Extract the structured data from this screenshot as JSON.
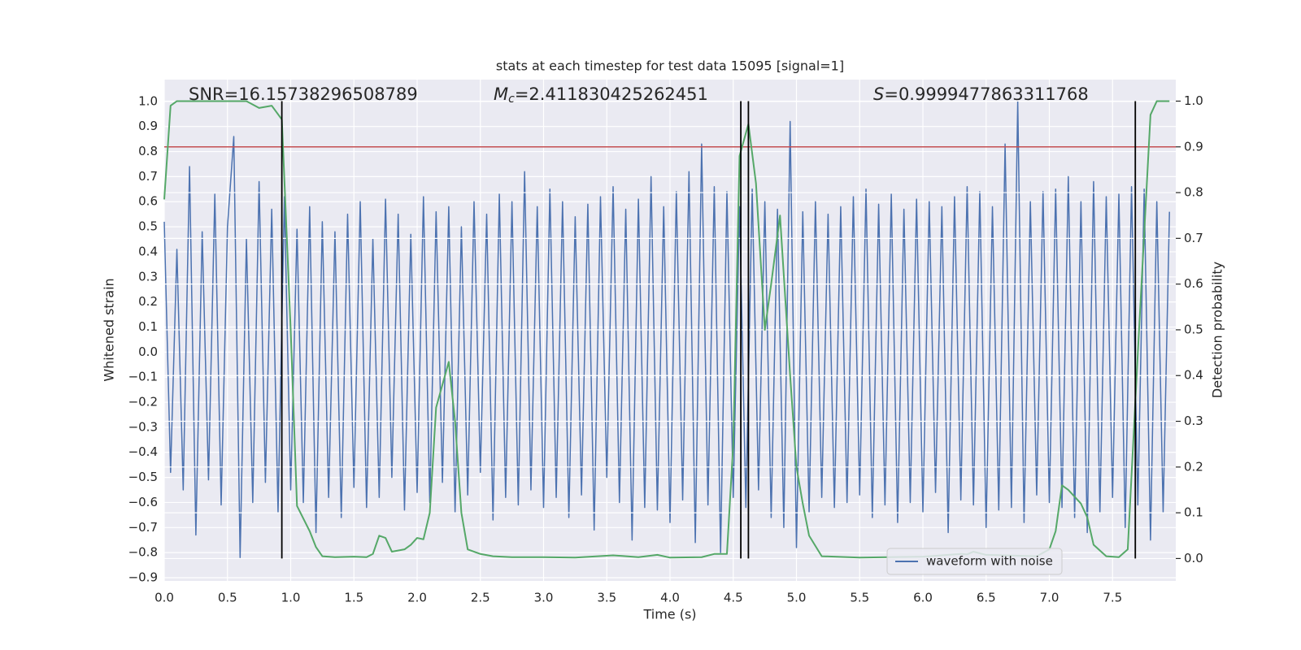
{
  "chart_data": {
    "type": "line",
    "title": "stats at each timestep for test data 15095 [signal=1]",
    "x_label": "Time (s)",
    "y_label": "Whitened strain",
    "y2_label": "Detection probability",
    "annotations": [
      {
        "text": "SNR=16.15738296508789"
      },
      {
        "symbol": "M",
        "subscript": "c",
        "text": "=2.411830425262451"
      },
      {
        "symbol": "S",
        "text": "=0.9999477863311768"
      }
    ],
    "xlim": [
      0,
      8.0
    ],
    "ylim": [
      -0.913,
      1.087
    ],
    "y2lim": [
      -0.049,
      1.047
    ],
    "xticks": [
      {
        "value": 0,
        "label": "0.0"
      },
      0.5,
      {
        "value": 1,
        "label": "1.0"
      },
      1.5,
      {
        "value": 2,
        "label": "2.0"
      },
      2.5,
      {
        "value": 3,
        "label": "3.0"
      },
      3.5,
      {
        "value": 4,
        "label": "4.0"
      },
      4.5,
      {
        "value": 5,
        "label": "5.0"
      },
      5.5,
      {
        "value": 6,
        "label": "6.0"
      },
      6.5,
      {
        "value": 7,
        "label": "7.0"
      },
      7.5
    ],
    "yticks": [
      {
        "value": -0.9,
        "label": "−0.9"
      },
      {
        "value": -0.8,
        "label": "−0.8"
      },
      {
        "value": -0.7,
        "label": "−0.7"
      },
      {
        "value": -0.6,
        "label": "−0.6"
      },
      {
        "value": -0.5,
        "label": "−0.5"
      },
      {
        "value": -0.4,
        "label": "−0.4"
      },
      {
        "value": -0.3,
        "label": "−0.3"
      },
      {
        "value": -0.2,
        "label": "−0.2"
      },
      {
        "value": -0.1,
        "label": "−0.1"
      },
      {
        "value": 0,
        "label": "0.0"
      },
      0.1,
      0.2,
      0.3,
      0.4,
      0.5,
      0.6,
      0.7,
      0.8,
      0.9,
      {
        "value": 1,
        "label": "1.0"
      }
    ],
    "y2ticks": [
      {
        "value": 0,
        "label": "0.0"
      },
      0.1,
      0.2,
      0.3,
      0.4,
      0.5,
      0.6,
      0.7,
      0.8,
      0.9,
      {
        "value": 1,
        "label": "1.0"
      }
    ],
    "grid": true,
    "legend": "lower right",
    "series": [
      {
        "name": "waveform with noise",
        "color": "#4c72b0",
        "x": [
          0,
          0.05,
          0.1,
          0.15,
          0.2,
          0.25,
          0.3,
          0.35,
          0.4,
          0.45,
          0.5,
          0.55,
          0.6,
          0.65,
          0.7,
          0.75,
          0.8,
          0.85,
          0.9,
          0.95,
          1.0,
          1.05,
          1.1,
          1.15,
          1.2,
          1.25,
          1.3,
          1.35,
          1.4,
          1.45,
          1.5,
          1.55,
          1.6,
          1.65,
          1.7,
          1.75,
          1.8,
          1.85,
          1.9,
          1.95,
          2.0,
          2.05,
          2.1,
          2.15,
          2.2,
          2.25,
          2.3,
          2.35,
          2.4,
          2.45,
          2.5,
          2.55,
          2.6,
          2.65,
          2.7,
          2.75,
          2.8,
          2.85,
          2.9,
          2.95,
          3.0,
          3.05,
          3.1,
          3.15,
          3.2,
          3.25,
          3.3,
          3.35,
          3.4,
          3.45,
          3.5,
          3.55,
          3.6,
          3.65,
          3.7,
          3.75,
          3.8,
          3.85,
          3.9,
          3.95,
          4.0,
          4.05,
          4.1,
          4.15,
          4.2,
          4.25,
          4.3,
          4.35,
          4.4,
          4.45,
          4.5,
          4.55,
          4.6,
          4.65,
          4.7,
          4.75,
          4.8,
          4.85,
          4.9,
          4.95,
          5.0,
          5.05,
          5.1,
          5.15,
          5.2,
          5.25,
          5.3,
          5.35,
          5.4,
          5.45,
          5.5,
          5.55,
          5.6,
          5.65,
          5.7,
          5.75,
          5.8,
          5.85,
          5.9,
          5.95,
          6.0,
          6.05,
          6.1,
          6.15,
          6.2,
          6.25,
          6.3,
          6.35,
          6.4,
          6.45,
          6.5,
          6.55,
          6.6,
          6.65,
          6.7,
          6.75,
          6.8,
          6.85,
          6.9,
          6.95,
          7.0,
          7.05,
          7.1,
          7.15,
          7.2,
          7.25,
          7.3,
          7.35,
          7.4,
          7.45,
          7.5,
          7.55,
          7.6,
          7.65,
          7.7,
          7.75,
          7.8,
          7.85,
          7.9,
          7.95
        ],
        "values": [
          0.52,
          -0.48,
          0.41,
          -0.55,
          0.74,
          -0.73,
          0.48,
          -0.51,
          0.63,
          -0.61,
          0.5,
          0.86,
          -0.82,
          0.45,
          -0.6,
          0.68,
          -0.52,
          0.57,
          -0.64,
          0.62,
          -0.55,
          0.49,
          -0.6,
          0.58,
          -0.72,
          0.52,
          -0.58,
          0.48,
          -0.66,
          0.55,
          -0.54,
          0.6,
          -0.62,
          0.45,
          -0.58,
          0.61,
          -0.5,
          0.55,
          -0.63,
          0.47,
          -0.56,
          0.62,
          -0.6,
          0.56,
          -0.52,
          0.58,
          -0.64,
          0.5,
          -0.57,
          0.6,
          -0.48,
          0.55,
          -0.67,
          0.63,
          -0.58,
          0.6,
          -0.61,
          0.72,
          -0.55,
          0.58,
          -0.62,
          0.65,
          -0.58,
          0.6,
          -0.66,
          0.54,
          -0.57,
          0.59,
          -0.71,
          0.62,
          -0.5,
          0.66,
          -0.6,
          0.57,
          -0.75,
          0.61,
          -0.62,
          0.7,
          -0.63,
          0.58,
          -0.68,
          0.64,
          -0.59,
          0.72,
          -0.76,
          0.83,
          -0.61,
          0.66,
          -0.8,
          0.64,
          -0.58,
          0.58,
          -0.62,
          0.65,
          -0.55,
          0.6,
          -0.66,
          0.57,
          -0.7,
          0.92,
          -0.78,
          0.56,
          -0.64,
          0.6,
          -0.58,
          0.55,
          -0.62,
          0.58,
          -0.6,
          0.62,
          -0.57,
          0.65,
          -0.66,
          0.59,
          -0.61,
          0.63,
          -0.68,
          0.57,
          -0.6,
          0.61,
          -0.64,
          0.6,
          -0.56,
          0.58,
          -0.72,
          0.62,
          -0.59,
          0.66,
          -0.61,
          0.64,
          -0.7,
          0.58,
          -0.63,
          0.83,
          -0.62,
          1.0,
          -0.68,
          0.6,
          -0.57,
          0.64,
          -0.6,
          0.65,
          -0.62,
          0.7,
          -0.66,
          0.6,
          -0.72,
          0.68,
          -0.64,
          0.62,
          -0.58,
          0.63,
          -0.7,
          0.66,
          -0.61,
          0.65,
          -0.75,
          0.6,
          -0.64,
          0.56
        ]
      },
      {
        "color": "#55a868",
        "axis": "y2",
        "x": [
          0,
          0.05,
          0.1,
          0.2,
          0.3,
          0.4,
          0.5,
          0.6,
          0.65,
          0.75,
          0.85,
          0.93,
          1.0,
          1.05,
          1.15,
          1.2,
          1.25,
          1.35,
          1.5,
          1.6,
          1.65,
          1.7,
          1.75,
          1.8,
          1.9,
          1.95,
          2.0,
          2.05,
          2.1,
          2.15,
          2.25,
          2.3,
          2.35,
          2.4,
          2.5,
          2.6,
          2.75,
          3.0,
          3.25,
          3.55,
          3.75,
          3.9,
          4.0,
          4.25,
          4.35,
          4.45,
          4.5,
          4.55,
          4.62,
          4.68,
          4.75,
          4.8,
          4.87,
          4.95,
          5.0,
          5.05,
          5.1,
          5.2,
          5.5,
          6.0,
          6.3,
          6.35,
          6.4,
          6.5,
          6.9,
          7.0,
          7.05,
          7.1,
          7.15,
          7.25,
          7.3,
          7.35,
          7.45,
          7.55,
          7.62,
          7.7,
          7.8,
          7.85,
          7.95
        ],
        "values": [
          0.785,
          0.99,
          1.0,
          1.0,
          1.0,
          1.0,
          1.0,
          1.0,
          1.0,
          0.985,
          0.99,
          0.96,
          0.5,
          0.115,
          0.06,
          0.025,
          0.005,
          0.003,
          0.004,
          0.003,
          0.01,
          0.05,
          0.045,
          0.015,
          0.02,
          0.03,
          0.045,
          0.042,
          0.1,
          0.33,
          0.43,
          0.3,
          0.1,
          0.02,
          0.01,
          0.005,
          0.003,
          0.003,
          0.002,
          0.007,
          0.003,
          0.008,
          0.002,
          0.003,
          0.01,
          0.01,
          0.25,
          0.88,
          0.95,
          0.82,
          0.5,
          0.6,
          0.75,
          0.4,
          0.2,
          0.12,
          0.05,
          0.005,
          0.002,
          0.004,
          0.01,
          0.009,
          0.015,
          0.008,
          0.005,
          0.02,
          0.06,
          0.16,
          0.15,
          0.12,
          0.09,
          0.03,
          0.005,
          0.003,
          0.02,
          0.45,
          0.97,
          1.0,
          1.0
        ]
      }
    ],
    "hline": {
      "y": 0.9,
      "axis": "y2",
      "color": "#c44e52"
    },
    "vlines": {
      "x": [
        0.93,
        4.56,
        4.62,
        7.68
      ],
      "ymin": 0,
      "ymax": 1,
      "axis": "y2",
      "color": "#000000"
    }
  }
}
